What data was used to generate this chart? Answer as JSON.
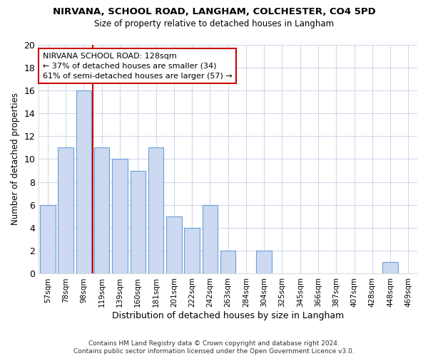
{
  "title1": "NIRVANA, SCHOOL ROAD, LANGHAM, COLCHESTER, CO4 5PD",
  "title2": "Size of property relative to detached houses in Langham",
  "xlabel": "Distribution of detached houses by size in Langham",
  "ylabel": "Number of detached properties",
  "categories": [
    "57sqm",
    "78sqm",
    "98sqm",
    "119sqm",
    "139sqm",
    "160sqm",
    "181sqm",
    "201sqm",
    "222sqm",
    "242sqm",
    "263sqm",
    "284sqm",
    "304sqm",
    "325sqm",
    "345sqm",
    "366sqm",
    "387sqm",
    "407sqm",
    "428sqm",
    "448sqm",
    "469sqm"
  ],
  "values": [
    6,
    11,
    16,
    11,
    10,
    9,
    11,
    5,
    4,
    6,
    2,
    0,
    2,
    0,
    0,
    0,
    0,
    0,
    0,
    1,
    0
  ],
  "bar_color": "#ccd9f0",
  "bar_edgecolor": "#6a9fd8",
  "vline_color": "#cc0000",
  "annotation_text": "NIRVANA SCHOOL ROAD: 128sqm\n← 37% of detached houses are smaller (34)\n61% of semi-detached houses are larger (57) →",
  "annotation_box_color": "#ffffff",
  "annotation_box_edgecolor": "#cc0000",
  "ylim": [
    0,
    20
  ],
  "yticks": [
    0,
    2,
    4,
    6,
    8,
    10,
    12,
    14,
    16,
    18,
    20
  ],
  "footnote": "Contains HM Land Registry data © Crown copyright and database right 2024.\nContains public sector information licensed under the Open Government Licence v3.0.",
  "background_color": "#ffffff",
  "grid_color": "#d0daea"
}
